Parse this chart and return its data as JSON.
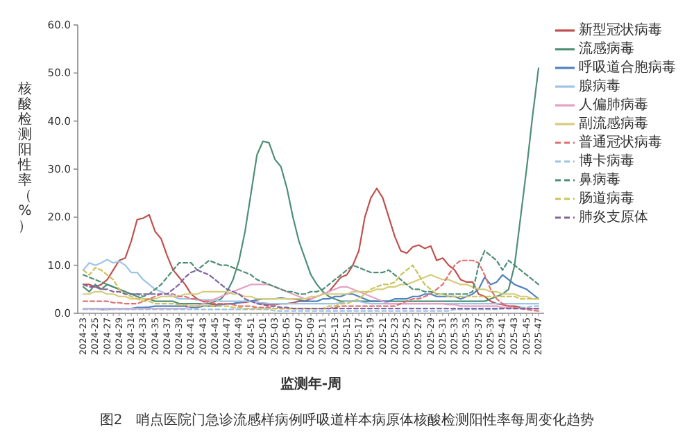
{
  "chart_data": {
    "type": "line",
    "xlabel": "监测年-周",
    "ylabel": "核酸检测阳性率（%）",
    "annotations": [
      "图2　哨点医院门急诊流感样病例呼吸道样本病原体核酸检测阳性率每周变化趋势"
    ],
    "categories": [
      "2024-23",
      null,
      "2024-25",
      null,
      "2024-27",
      null,
      "2024-29",
      null,
      "2024-31",
      null,
      "2024-33",
      null,
      "2024-35",
      null,
      "2024-37",
      null,
      "2024-39",
      null,
      "2024-41",
      null,
      "2024-43",
      null,
      "2024-45",
      null,
      "2024-47",
      null,
      "2024-49",
      null,
      "2024-51",
      null,
      "2025-01",
      null,
      "2025-03",
      null,
      "2025-05",
      null,
      "2025-07",
      null,
      "2025-09",
      null,
      "2025-11",
      null,
      "2025-13",
      null,
      "2025-15",
      null,
      "2025-17",
      null,
      "2025-19",
      null,
      "2025-21",
      null,
      "2025-23",
      null,
      "2025-25",
      null,
      "2025-27",
      null,
      "2025-29",
      null,
      "2025-31",
      null,
      "2025-33",
      null,
      "2025-35",
      null,
      "2025-37",
      null,
      "2025-39",
      null,
      "2025-41",
      null,
      "2025-43",
      null,
      "2025-45",
      null,
      "2025-47"
    ],
    "ylim": [
      0,
      60
    ],
    "yticks": [
      {
        "value": 0,
        "label": "0.0"
      },
      {
        "value": 10,
        "label": "10.0"
      },
      {
        "value": 20,
        "label": "20.0"
      },
      {
        "value": 30,
        "label": "30.0"
      },
      {
        "value": 40,
        "label": "40.0"
      },
      {
        "value": 50,
        "label": "50.0"
      },
      {
        "value": 60,
        "label": "60.0"
      }
    ],
    "grid": false,
    "legend": "right",
    "marker": "none",
    "series": [
      {
        "name": "新型冠状病毒",
        "color": "#c0504d",
        "line_style": "solid",
        "values": [
          6,
          6,
          5.5,
          6,
          7,
          9,
          11,
          11.5,
          15,
          19.5,
          19.8,
          20.5,
          17,
          15.5,
          12,
          9,
          7.5,
          6,
          4,
          3,
          2.5,
          2,
          1.8,
          1.8,
          2,
          2,
          2.2,
          2.3,
          2.5,
          2.3,
          2,
          1.8,
          1.8,
          2,
          2,
          2.2,
          2.5,
          2.5,
          3,
          3.5,
          4,
          4.5,
          6,
          7.5,
          8,
          10,
          13,
          20,
          24,
          26,
          24,
          20,
          16,
          13,
          12.5,
          13.8,
          14.2,
          13.5,
          14,
          11,
          11.5,
          10,
          9,
          7,
          6.5,
          6.5,
          4,
          3.5,
          2.5,
          2,
          1.8,
          1.5,
          1.5,
          1.2,
          1,
          1,
          1
        ]
      },
      {
        "name": "流感病毒",
        "color": "#4e8f74",
        "line_style": "solid",
        "values": [
          5.5,
          4.5,
          6,
          5,
          6,
          5.5,
          5,
          4.5,
          4,
          3.5,
          3,
          3,
          2.5,
          2.5,
          2.5,
          2.5,
          2,
          2,
          2,
          2,
          2,
          2,
          2.5,
          3,
          4.5,
          7,
          11,
          17,
          25,
          33,
          35.8,
          35.5,
          32,
          30.5,
          26,
          20,
          15,
          11.5,
          8,
          6,
          4.5,
          3.5,
          3,
          2.5,
          2.5,
          2.5,
          2.5,
          2.5,
          2.5,
          2.5,
          2.5,
          2.5,
          2.5,
          2.5,
          2.5,
          2.5,
          2.5,
          2.5,
          2.5,
          2.5,
          2.5,
          2.5,
          2.5,
          2.5,
          2.5,
          2.5,
          2.5,
          2.5,
          3,
          3.5,
          4,
          5,
          10,
          20,
          30,
          41,
          51
        ]
      },
      {
        "name": "呼吸道合胞病毒",
        "color": "#4f81bd",
        "line_style": "solid",
        "values": [
          1,
          1,
          1,
          0.8,
          0.8,
          1,
          1,
          1,
          1,
          1.2,
          1.2,
          1.3,
          1.5,
          1.5,
          1.5,
          1.5,
          1.5,
          1.5,
          1.2,
          1.2,
          1.5,
          1.5,
          1.5,
          1.8,
          2,
          2,
          2.2,
          2.5,
          2.5,
          2.8,
          3,
          3,
          3,
          3.2,
          3,
          3,
          2.8,
          2.5,
          2.5,
          2.5,
          3,
          3,
          3.5,
          3.5,
          4,
          4,
          3.5,
          3,
          2.5,
          2.5,
          2.5,
          2.5,
          3,
          3,
          3,
          3.5,
          3.5,
          4,
          4,
          3.5,
          3.5,
          3.5,
          3.5,
          3,
          3.5,
          4,
          5,
          7.5,
          6,
          6.5,
          8,
          7,
          6,
          5.5,
          5,
          4,
          3
        ]
      },
      {
        "name": "腺病毒",
        "color": "#9dc3e6",
        "line_style": "solid",
        "values": [
          9,
          10.5,
          10,
          10.5,
          11.2,
          10.5,
          10.8,
          10,
          8.5,
          8.5,
          7,
          6,
          5,
          4.5,
          4,
          3.5,
          3,
          3,
          3,
          2.8,
          2.8,
          2.8,
          2.8,
          2.5,
          2.5,
          2.5,
          2.5,
          2.5,
          2.5,
          2.2,
          2.2,
          2,
          2,
          2,
          2,
          2,
          2,
          2,
          2,
          2,
          2,
          2,
          2,
          2.2,
          2.5,
          2.5,
          2.5,
          2.2,
          2,
          2,
          2,
          2,
          2,
          2,
          2,
          2,
          2,
          2,
          2,
          2,
          2,
          2,
          2,
          2,
          2,
          2,
          2,
          2,
          2,
          2,
          2,
          2,
          2,
          2,
          2,
          2,
          2
        ]
      },
      {
        "name": "人偏肺病毒",
        "color": "#e6a0c4",
        "line_style": "solid",
        "values": [
          1,
          1,
          1,
          1,
          1,
          1,
          1,
          1,
          1,
          1,
          1,
          1,
          1,
          1,
          1,
          1,
          1,
          1,
          1.5,
          1.5,
          2,
          2.5,
          3,
          3.5,
          4,
          4.5,
          5,
          5.5,
          6,
          6,
          6,
          6,
          5.5,
          5,
          4.5,
          4,
          3.5,
          3,
          3,
          3.5,
          4,
          4.5,
          5,
          5.5,
          5.5,
          5,
          4.5,
          4,
          3.5,
          3,
          2.5,
          2,
          2,
          2,
          2,
          2,
          2,
          2,
          2,
          2,
          2,
          1.8,
          1.8,
          1.5,
          1.5,
          1.5,
          1.5,
          1.5,
          1.5,
          1.5,
          1.2,
          1.2,
          1,
          1,
          1,
          1,
          1
        ]
      },
      {
        "name": "副流感病毒",
        "color": "#d4cc7a",
        "line_style": "solid",
        "values": [
          4,
          4,
          4.5,
          4.5,
          4,
          4,
          3.5,
          3.5,
          3,
          3,
          3,
          3,
          3,
          3.5,
          3.5,
          3.5,
          3.5,
          4,
          4,
          4,
          4.5,
          4.5,
          4.5,
          4.5,
          4.5,
          4,
          4,
          3.5,
          3.5,
          3,
          3,
          3,
          3,
          3,
          3,
          3,
          3,
          3,
          3.5,
          3.5,
          4,
          4,
          4,
          4,
          4,
          4.5,
          4.5,
          4.5,
          4.5,
          5,
          5,
          5.5,
          5.5,
          6,
          6,
          6.5,
          7,
          7.5,
          8,
          7.5,
          7,
          7,
          6.5,
          6,
          6,
          5.5,
          5,
          5,
          4.5,
          4.5,
          4,
          4,
          4,
          3.5,
          3.5,
          3,
          3
        ]
      },
      {
        "name": "普通冠状病毒",
        "color": "#e07070",
        "line_style": "dashed",
        "values": [
          2.5,
          2.5,
          2.5,
          2.5,
          2.5,
          2.2,
          2.2,
          2,
          2,
          2,
          2.5,
          3,
          3.5,
          4,
          4,
          4,
          3.5,
          3.5,
          3,
          3,
          2.5,
          2.5,
          2,
          2,
          2,
          1.8,
          1.5,
          1.5,
          1.5,
          1.2,
          1.2,
          1.2,
          1,
          1,
          1,
          1,
          1,
          1,
          1,
          1,
          1,
          1,
          1.2,
          1.5,
          1.5,
          1.5,
          1.5,
          1.5,
          1.5,
          1.5,
          1.5,
          1.5,
          1.5,
          2,
          2.5,
          3,
          3,
          3.5,
          4,
          5,
          6,
          8,
          10,
          11,
          11,
          11,
          10.5,
          8,
          5,
          3,
          2,
          1.5,
          1.2,
          1,
          0.8,
          0.6,
          0.5
        ]
      },
      {
        "name": "博卡病毒",
        "color": "#9dc3e6",
        "line_style": "dashed",
        "values": [
          0.8,
          0.8,
          0.8,
          0.8,
          0.8,
          0.8,
          0.8,
          0.8,
          0.8,
          0.8,
          0.8,
          0.8,
          0.8,
          0.8,
          0.8,
          0.8,
          0.8,
          0.8,
          0.8,
          0.8,
          0.8,
          0.8,
          0.8,
          0.8,
          0.8,
          0.8,
          0.8,
          0.8,
          0.8,
          0.8,
          0.8,
          0.8,
          0.5,
          0.5,
          0.5,
          0.5,
          0.5,
          0.5,
          0.5,
          0.5,
          0.5,
          0.5,
          0.5,
          0.5,
          0.5,
          0.5,
          0.5,
          0.5,
          0.5,
          0.5,
          0.5,
          0.5,
          0.5,
          0.5,
          0.5,
          0.5,
          0.5,
          0.5,
          0.5,
          0.5,
          0.5,
          0.5,
          0.8,
          0.8,
          0.8,
          0.8,
          0.8,
          0.8,
          0.8,
          0.8,
          1,
          1,
          1,
          1.2,
          1.2,
          1.5,
          1.5
        ]
      },
      {
        "name": "鼻病毒",
        "color": "#4e8f74",
        "line_style": "dashed",
        "values": [
          8,
          7.5,
          7,
          6.5,
          6,
          5.5,
          5,
          4.5,
          4,
          4,
          3.5,
          4,
          5,
          6,
          7.5,
          9,
          10.5,
          10.5,
          10.5,
          9,
          10,
          11,
          10.5,
          10,
          10,
          9.5,
          9,
          8.5,
          8,
          7,
          6.5,
          6,
          5.5,
          5,
          4.5,
          4.5,
          4,
          4,
          4.5,
          4.5,
          5,
          6,
          7,
          8,
          9,
          10,
          9.5,
          9,
          8.5,
          8.5,
          8.5,
          9,
          8,
          7,
          6,
          5,
          5,
          4.5,
          4.5,
          4,
          4,
          4,
          4,
          4,
          4,
          4.5,
          10,
          13,
          12,
          11,
          9,
          11,
          10,
          9,
          8,
          7,
          6
        ]
      },
      {
        "name": "肠道病毒",
        "color": "#ccc35a",
        "line_style": "dashed",
        "values": [
          9,
          8,
          9.5,
          9,
          8,
          7,
          5,
          4,
          3.5,
          3,
          2.5,
          2.5,
          2,
          2,
          2,
          2,
          1.8,
          1.8,
          1.5,
          1.5,
          1.5,
          1.5,
          1.5,
          1.5,
          1.5,
          1.2,
          1.2,
          1,
          1,
          1,
          1,
          1,
          1,
          1,
          1,
          1,
          1,
          1,
          1,
          1,
          1,
          1.5,
          1.5,
          2,
          2,
          2.5,
          3,
          4,
          5,
          5.5,
          6,
          6,
          6.5,
          8,
          9,
          10,
          8,
          6,
          5,
          4,
          4,
          3.5,
          3.5,
          3.5,
          3.5,
          3.5,
          3.5,
          3.5,
          3.5,
          3.5,
          3.5,
          3.5,
          3.5,
          3,
          3,
          3,
          3
        ]
      },
      {
        "name": "肺炎支原体",
        "color": "#8064a2",
        "line_style": "dashed",
        "values": [
          6,
          5.5,
          5.5,
          5,
          5,
          4.5,
          4.5,
          4,
          4,
          4,
          4,
          4,
          4,
          4,
          4,
          5,
          6,
          7.5,
          8.5,
          9,
          8.5,
          8,
          7,
          6,
          5,
          4.5,
          4,
          3,
          2.5,
          2,
          1.8,
          1.5,
          1.5,
          1.2,
          1.2,
          1,
          1,
          1,
          1,
          1,
          1,
          1,
          1,
          1,
          1,
          1,
          1,
          1,
          1,
          1,
          1,
          1,
          1,
          1,
          1,
          1,
          1,
          1,
          1,
          1,
          1,
          1,
          1,
          1,
          1,
          1,
          1,
          1,
          1,
          1,
          1,
          1,
          1,
          1,
          1,
          1,
          1
        ]
      }
    ]
  }
}
